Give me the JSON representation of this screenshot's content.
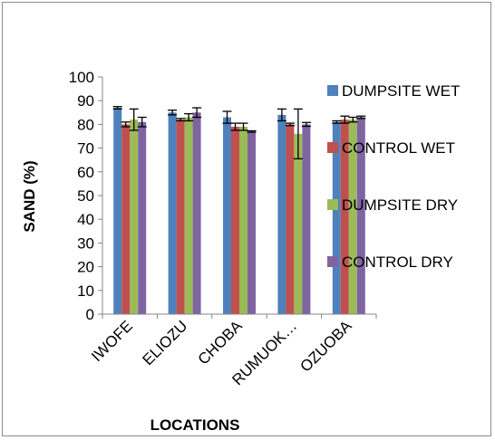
{
  "chart_data": {
    "type": "bar",
    "title": "",
    "xlabel": "LOCATIONS",
    "ylabel": "SAND (%)",
    "ylim": [
      0,
      100
    ],
    "yticks": [
      0,
      10,
      20,
      30,
      40,
      50,
      60,
      70,
      80,
      90,
      100
    ],
    "grid": false,
    "legend_position": "right",
    "categories": [
      "IWOFE",
      "ELIOZU",
      "CHOBA",
      "RUMUOK…",
      "OZUOBA"
    ],
    "series": [
      {
        "name": "DUMPSITE WET",
        "color": "#4f81bd",
        "values": [
          87,
          85,
          83,
          84,
          81
        ],
        "errors": [
          0.5,
          1.0,
          2.5,
          2.5,
          0.5
        ]
      },
      {
        "name": "CONTROL WET",
        "color": "#c0504d",
        "values": [
          80,
          82,
          79,
          80,
          82
        ],
        "errors": [
          1.0,
          0.5,
          1.5,
          0.5,
          1.5
        ]
      },
      {
        "name": "DUMPSITE DRY",
        "color": "#9bbb59",
        "values": [
          82,
          83,
          79,
          76,
          82
        ],
        "errors": [
          4.5,
          1.5,
          1.5,
          10.5,
          1.0
        ]
      },
      {
        "name": "CONTROL DRY",
        "color": "#8064a2",
        "values": [
          81,
          85,
          77,
          80,
          83
        ],
        "errors": [
          2.0,
          2.0,
          0.3,
          0.8,
          0.5
        ]
      }
    ]
  }
}
